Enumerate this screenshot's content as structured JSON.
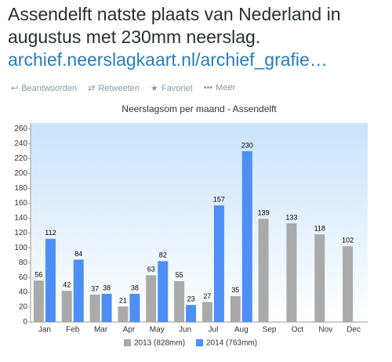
{
  "tweet": {
    "text_lines": [
      "Assendelft natste plaats van Nederland in",
      "augustus met 230mm neerslag."
    ],
    "link": "archief.neerslagkaart.nl/archief_grafie…",
    "actions": [
      "Beantwoorden",
      "Retweeten",
      "Favoriet",
      "Meer"
    ]
  },
  "chart_data": {
    "type": "bar",
    "title": "Neerslagsom per maand - Assendelft",
    "categories": [
      "Jan",
      "Feb",
      "Mar",
      "Apr",
      "May",
      "Jun",
      "Jul",
      "Aug",
      "Sep",
      "Oct",
      "Nov",
      "Dec"
    ],
    "series": [
      {
        "name": "2013 (828mm)",
        "color": "#aaaaaa",
        "values": [
          56,
          42,
          37,
          21,
          63,
          55,
          27,
          35,
          139,
          133,
          118,
          102
        ]
      },
      {
        "name": "2014 (763mm)",
        "color": "#4d8ef7",
        "values": [
          112,
          84,
          38,
          38,
          82,
          23,
          157,
          230,
          null,
          null,
          null,
          null
        ]
      }
    ],
    "ylim": [
      0,
      268
    ],
    "yticks": [
      0,
      20,
      40,
      60,
      80,
      100,
      120,
      140,
      160,
      180,
      200,
      220,
      240,
      260
    ],
    "grid": false,
    "legend": "bottom"
  }
}
